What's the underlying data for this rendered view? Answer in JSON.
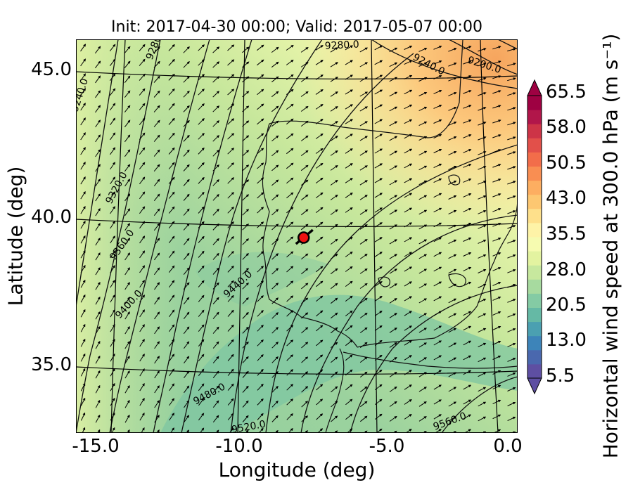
{
  "title": "Init: 2017-04-30 00:00; Valid: 2017-05-07 00:00",
  "axes": {
    "xlabel": "Longitude (deg)",
    "ylabel": "Latitude (deg)",
    "xticks": [
      "-15.0",
      "-10.0",
      "-5.0",
      "0.0"
    ],
    "yticks": [
      "45.0",
      "40.0",
      "35.0"
    ],
    "xlim": [
      -15.9,
      0.2
    ],
    "ylim": [
      32.6,
      46.2
    ]
  },
  "colorbar": {
    "label": "Horizontal wind speed at 300.0 hPa (m s$^{-1}$)",
    "label_display": "Horizontal wind speed at 300.0 hPa (m s⁻¹)",
    "tick_labels": [
      "65.5",
      "58.0",
      "50.5",
      "43.0",
      "35.5",
      "28.0",
      "20.5",
      "13.0",
      "5.5"
    ],
    "range": [
      5.5,
      65.5
    ],
    "colors": [
      "#5e4fa2",
      "#4a68ae",
      "#3d84b9",
      "#4ba0b1",
      "#65b9a5",
      "#84cba4",
      "#a7da9f",
      "#c7e89e",
      "#e3f3a0",
      "#f6fbb0",
      "#fef3a7",
      "#fee08b",
      "#fdc771",
      "#fdae61",
      "#f98e52",
      "#f26d4a",
      "#e2504a",
      "#cd3447",
      "#b1164a",
      "#9e0142"
    ]
  },
  "contours": {
    "variable": "300 hPa geopotential height",
    "labels": [
      "9200.0",
      "9240.0",
      "9240.0",
      "9280.0",
      "9280.0",
      "9320.0",
      "9360.0",
      "9400.0",
      "9440.0",
      "9480.0",
      "9520.0",
      "9560.0"
    ]
  },
  "marker": {
    "lon": -7.6,
    "lat": 39.35,
    "color": "#ee1111"
  }
}
